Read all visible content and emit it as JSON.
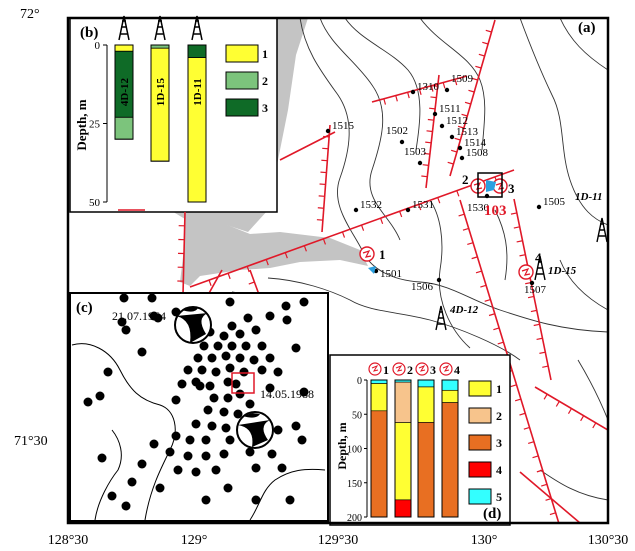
{
  "map": {
    "panel_label": "(a)",
    "lat_labels": [
      "72°",
      "71°30"
    ],
    "lon_labels": [
      "128°30",
      "129°",
      "129°30",
      "130°",
      "130°30"
    ],
    "stations": [
      {
        "id": "1310"
      },
      {
        "id": "1509"
      },
      {
        "id": "1511"
      },
      {
        "id": "1512"
      },
      {
        "id": "1513"
      },
      {
        "id": "1514"
      },
      {
        "id": "1508"
      },
      {
        "id": "1515"
      },
      {
        "id": "1502"
      },
      {
        "id": "1503"
      },
      {
        "id": "1532"
      },
      {
        "id": "1531"
      },
      {
        "id": "1530"
      },
      {
        "id": "1505"
      },
      {
        "id": "1501"
      },
      {
        "id": "1506"
      },
      {
        "id": "1507"
      }
    ],
    "site_numbers": [
      "1",
      "2",
      "3",
      "4"
    ],
    "site_code": "103",
    "wells": [
      "1D-11",
      "1D-15",
      "4D-12"
    ]
  },
  "inset_b": {
    "label": "(b)",
    "axis_label": "Depth, m",
    "ticks": [
      "0",
      "25",
      "50"
    ],
    "columns": [
      "4D-12",
      "1D-15",
      "1D-11"
    ],
    "legend": [
      {
        "key": "1",
        "color": "#ffff33"
      },
      {
        "key": "2",
        "color": "#7cc47c"
      },
      {
        "key": "3",
        "color": "#0f6b27"
      }
    ]
  },
  "inset_c": {
    "label": "(c)",
    "events": [
      "21.07.1964",
      "14.05.1988"
    ]
  },
  "inset_d": {
    "label": "(d)",
    "axis_label": "Depth, m",
    "ticks": [
      "0",
      "50",
      "100",
      "150",
      "200"
    ],
    "columns": [
      "1",
      "2",
      "3",
      "4"
    ],
    "legend": [
      {
        "key": "1",
        "color": "#ffff33"
      },
      {
        "key": "2",
        "color": "#f7c48c"
      },
      {
        "key": "3",
        "color": "#e86f22"
      },
      {
        "key": "4",
        "color": "#ff0000"
      },
      {
        "key": "5",
        "color": "#33ffff"
      }
    ]
  },
  "chart_data": [
    {
      "type": "bar",
      "title": "(b)",
      "ylabel": "Depth, m",
      "ylim": [
        0,
        50
      ],
      "categories": [
        "4D-12",
        "1D-15",
        "1D-11"
      ],
      "series": [
        {
          "name": "1",
          "values": [
            [
              0,
              2
            ],
            [
              1,
              37
            ],
            [
              4,
              50
            ]
          ]
        },
        {
          "name": "2",
          "values": [
            [
              23,
              30
            ],
            [
              0,
              1
            ],
            [
              0,
              0
            ]
          ]
        },
        {
          "name": "3",
          "values": [
            [
              2,
              23
            ],
            [
              0,
              0
            ],
            [
              0,
              4
            ]
          ]
        }
      ]
    },
    {
      "type": "bar",
      "title": "(d)",
      "ylabel": "Depth, m",
      "ylim": [
        0,
        200
      ],
      "categories": [
        "1",
        "2",
        "3",
        "4"
      ],
      "series": [
        {
          "name": "1",
          "values": [
            [
              5,
              45
            ],
            [
              62,
              175
            ],
            [
              10,
              62
            ],
            [
              15,
              33
            ]
          ]
        },
        {
          "name": "2",
          "values": [
            [
              0,
              0
            ],
            [
              3,
              62
            ],
            [
              0,
              0
            ],
            [
              0,
              0
            ]
          ]
        },
        {
          "name": "3",
          "values": [
            [
              45,
              200
            ],
            [
              0,
              0
            ],
            [
              62,
              200
            ],
            [
              33,
              200
            ]
          ]
        },
        {
          "name": "4",
          "values": [
            [
              0,
              0
            ],
            [
              175,
              200
            ],
            [
              0,
              0
            ],
            [
              0,
              0
            ]
          ]
        },
        {
          "name": "5",
          "values": [
            [
              0,
              5
            ],
            [
              0,
              3
            ],
            [
              0,
              10
            ],
            [
              0,
              15
            ]
          ]
        }
      ]
    }
  ]
}
